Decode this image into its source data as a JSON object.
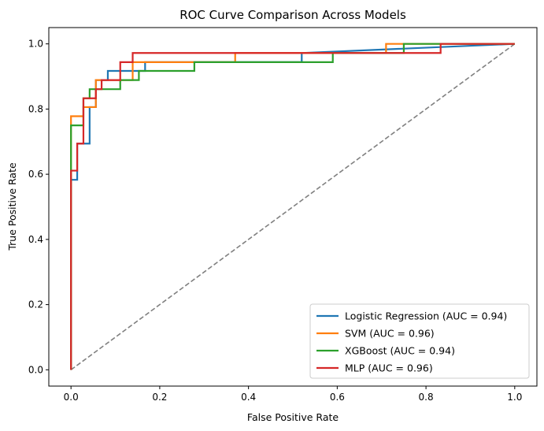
{
  "chart_data": {
    "type": "line",
    "title": "ROC Curve Comparison Across Models",
    "xlabel": "False Positive Rate",
    "ylabel": "True Positive Rate",
    "xlim": [
      -0.05,
      1.05
    ],
    "ylim": [
      -0.05,
      1.05
    ],
    "x_ticks": [
      "0.0",
      "0.2",
      "0.4",
      "0.6",
      "0.8",
      "1.0"
    ],
    "y_ticks": [
      "0.0",
      "0.2",
      "0.4",
      "0.6",
      "0.8",
      "1.0"
    ],
    "grid": false,
    "legend_position": "lower-right",
    "diagonal": {
      "x": [
        0,
        1
      ],
      "y": [
        0,
        1
      ],
      "color": "#808080",
      "style": "dashed"
    },
    "series": [
      {
        "name": "Logistic Regression (AUC = 0.94)",
        "color": "#1f77b4",
        "x": [
          0,
          0,
          0.014,
          0.014,
          0.042,
          0.042,
          0.056,
          0.056,
          0.083,
          0.083,
          0.167,
          0.167,
          0.52,
          0.52,
          1.0
        ],
        "y": [
          0,
          0.583,
          0.583,
          0.694,
          0.694,
          0.806,
          0.806,
          0.889,
          0.889,
          0.917,
          0.917,
          0.944,
          0.944,
          0.972,
          1.0
        ]
      },
      {
        "name": "SVM (AUC = 0.96)",
        "color": "#ff7f0e",
        "x": [
          0,
          0,
          0.028,
          0.028,
          0.056,
          0.056,
          0.139,
          0.139,
          0.37,
          0.37,
          0.71,
          0.71,
          1.0
        ],
        "y": [
          0,
          0.778,
          0.778,
          0.806,
          0.806,
          0.889,
          0.889,
          0.944,
          0.944,
          0.972,
          0.972,
          1.0,
          1.0
        ]
      },
      {
        "name": "XGBoost (AUC = 0.94)",
        "color": "#2ca02c",
        "x": [
          0,
          0,
          0.028,
          0.028,
          0.042,
          0.042,
          0.111,
          0.111,
          0.153,
          0.153,
          0.278,
          0.278,
          0.59,
          0.59,
          0.75,
          0.75,
          1.0
        ],
        "y": [
          0,
          0.75,
          0.75,
          0.833,
          0.833,
          0.861,
          0.861,
          0.889,
          0.889,
          0.917,
          0.917,
          0.944,
          0.944,
          0.972,
          0.972,
          1.0,
          1.0
        ]
      },
      {
        "name": "MLP (AUC = 0.96)",
        "color": "#d62728",
        "x": [
          0,
          0,
          0.014,
          0.014,
          0.028,
          0.028,
          0.056,
          0.056,
          0.069,
          0.069,
          0.111,
          0.111,
          0.139,
          0.139,
          0.833,
          0.833,
          1.0
        ],
        "y": [
          0,
          0.611,
          0.611,
          0.694,
          0.694,
          0.833,
          0.833,
          0.861,
          0.861,
          0.889,
          0.889,
          0.944,
          0.944,
          0.972,
          0.972,
          1.0,
          1.0
        ]
      }
    ]
  }
}
